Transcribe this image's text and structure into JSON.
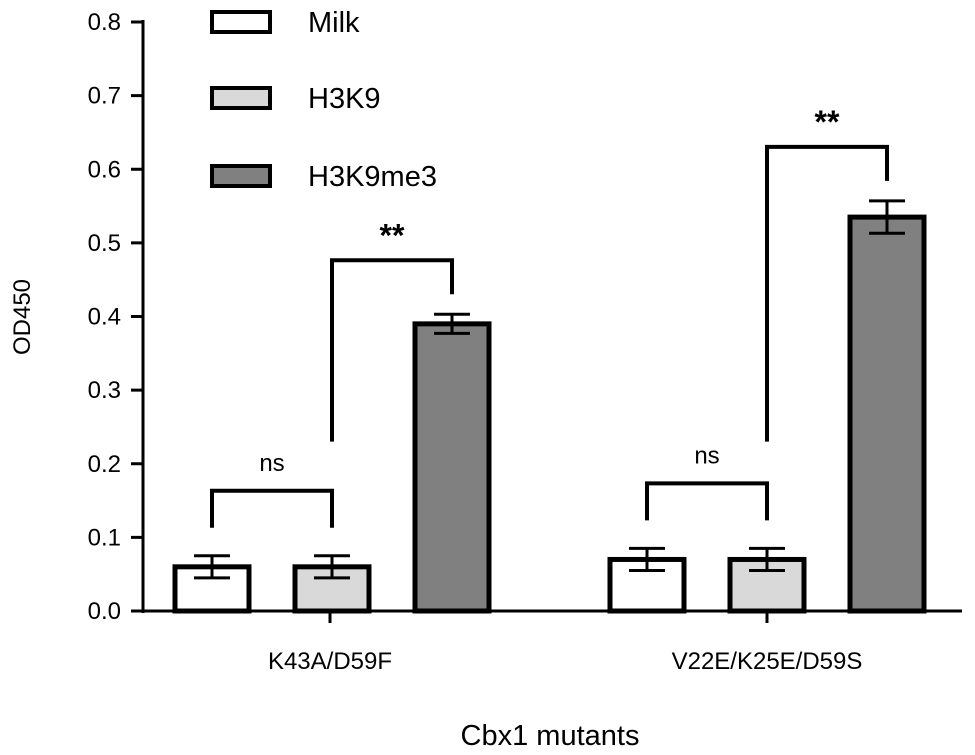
{
  "chart_data": {
    "type": "bar",
    "xlabel": "Cbx1 mutants",
    "ylabel": "OD450",
    "ylim": [
      0,
      0.8
    ],
    "yticks": [
      "0.0",
      "0.1",
      "0.2",
      "0.3",
      "0.4",
      "0.5",
      "0.6",
      "0.7",
      "0.8"
    ],
    "categories": [
      "K43A/D59F",
      "V22E/K25E/D59S"
    ],
    "series": [
      {
        "name": "Milk",
        "values": [
          0.06,
          0.07
        ],
        "errors": [
          0.015,
          0.015
        ],
        "color": "#ffffff"
      },
      {
        "name": "H3K9",
        "values": [
          0.06,
          0.07
        ],
        "errors": [
          0.015,
          0.015
        ],
        "color": "#d9d9d9"
      },
      {
        "name": "H3K9me3",
        "values": [
          0.39,
          0.535
        ],
        "errors": [
          0.013,
          0.022
        ],
        "color": "#808080"
      }
    ],
    "significance": [
      {
        "category": 0,
        "from_series": 0,
        "to_series": 1,
        "label": "ns"
      },
      {
        "category": 0,
        "from_series": 1,
        "to_series": 2,
        "label": "**"
      },
      {
        "category": 1,
        "from_series": 0,
        "to_series": 1,
        "label": "ns"
      },
      {
        "category": 1,
        "from_series": 1,
        "to_series": 2,
        "label": "**"
      }
    ],
    "legend_position": "top-left"
  }
}
